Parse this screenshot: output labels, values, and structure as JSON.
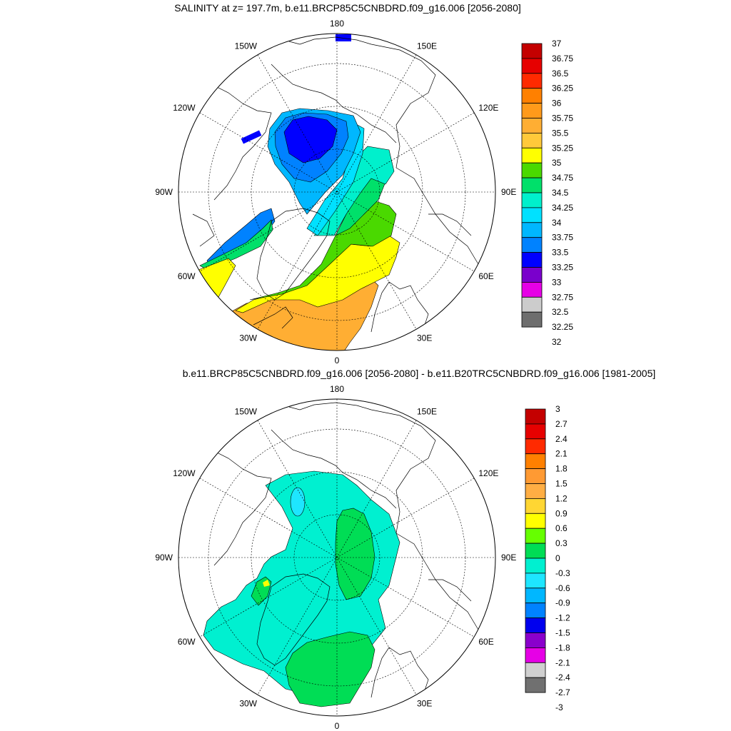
{
  "panels": [
    {
      "title": "SALINITY at z= 197.7m, b.e11.BRCP85C5CNBDRD.f09_g16.006 [2056-2080]",
      "lon_labels": [
        "180",
        "150E",
        "120E",
        "90E",
        "60E",
        "30E",
        "0",
        "30W",
        "60W",
        "90W",
        "120W",
        "150W"
      ],
      "colorbar": {
        "labels": [
          "37",
          "36.75",
          "36.5",
          "36.25",
          "36",
          "35.75",
          "35.5",
          "35.25",
          "35",
          "34.75",
          "34.5",
          "34.25",
          "34",
          "33.75",
          "33.5",
          "33.25",
          "33",
          "32.75",
          "32.5",
          "32.25",
          "32"
        ],
        "colors": [
          "#c40000",
          "#e60000",
          "#ff2a00",
          "#ff8000",
          "#ff9a1a",
          "#ffae33",
          "#ffc93a",
          "#ffff00",
          "#4ad900",
          "#00e06a",
          "#00f0cc",
          "#00e1ff",
          "#00b7ff",
          "#0082ff",
          "#0000ff",
          "#7a00cc",
          "#e600e6",
          "#cccccc",
          "#6e6e6e"
        ]
      }
    },
    {
      "title": "b.e11.BRCP85C5CNBDRD.f09_g16.006 [2056-2080] - b.e11.B20TRC5CNBDRD.f09_g16.006 [1981-2005]",
      "lon_labels": [
        "180",
        "150E",
        "120E",
        "90E",
        "60E",
        "30E",
        "0",
        "30W",
        "60W",
        "90W",
        "120W",
        "150W"
      ],
      "colorbar": {
        "labels": [
          "3",
          "2.7",
          "2.4",
          "2.1",
          "1.8",
          "1.5",
          "1.2",
          "0.9",
          "0.6",
          "0.3",
          "0",
          "-0.3",
          "-0.6",
          "-0.9",
          "-1.2",
          "-1.5",
          "-1.8",
          "-2.1",
          "-2.4",
          "-2.7",
          "-3"
        ],
        "colors": [
          "#c40000",
          "#e60000",
          "#ff2a00",
          "#ff8000",
          "#ff9a33",
          "#ffae44",
          "#ffd633",
          "#ffff00",
          "#66ff00",
          "#00dd55",
          "#00f0d0",
          "#1ee6ff",
          "#00b7ff",
          "#0082ff",
          "#0000ee",
          "#8a00cc",
          "#e600e6",
          "#d0d0d0",
          "#707070"
        ]
      }
    }
  ]
}
